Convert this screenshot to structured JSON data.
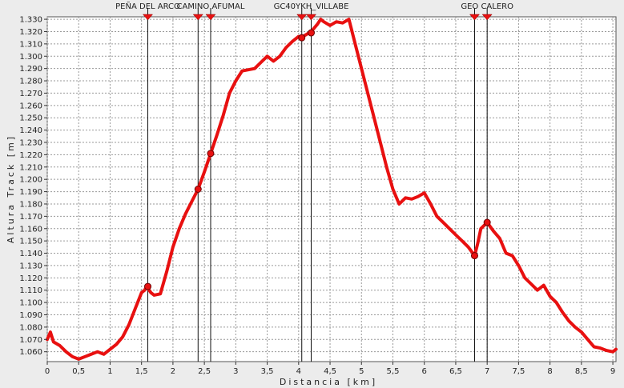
{
  "chart_data": {
    "type": "line",
    "title": "",
    "xlabel": "Distancia [km]",
    "ylabel": "Altura Track [m]",
    "xlim": [
      0,
      9.05
    ],
    "ylim": [
      1052,
      1332
    ],
    "grid": true,
    "x_ticks": [
      0,
      0.5,
      1,
      1.5,
      2,
      2.5,
      3,
      3.5,
      4,
      4.5,
      5,
      5.5,
      6,
      6.5,
      7,
      7.5,
      8,
      8.5,
      9
    ],
    "x_tick_labels": [
      "0",
      "0,5",
      "1",
      "1,5",
      "2",
      "2,5",
      "3",
      "3,5",
      "4",
      "4,5",
      "5",
      "5,5",
      "6",
      "6,5",
      "7",
      "7,5",
      "8",
      "8,5",
      "9"
    ],
    "y_ticks": [
      1060,
      1070,
      1080,
      1090,
      1100,
      1110,
      1120,
      1130,
      1140,
      1150,
      1160,
      1170,
      1180,
      1190,
      1200,
      1210,
      1220,
      1230,
      1240,
      1250,
      1260,
      1270,
      1280,
      1290,
      1300,
      1310,
      1320,
      1330
    ],
    "y_tick_labels": [
      "1.060",
      "1.070",
      "1.080",
      "1.090",
      "1.100",
      "1.110",
      "1.120",
      "1.130",
      "1.140",
      "1.150",
      "1.160",
      "1.170",
      "1.180",
      "1.190",
      "1.200",
      "1.210",
      "1.220",
      "1.230",
      "1.240",
      "1.250",
      "1.260",
      "1.270",
      "1.280",
      "1.290",
      "1.300",
      "1.310",
      "1.320",
      "1.330"
    ],
    "series": [
      {
        "name": "",
        "color": "#e81010",
        "x": [
          0,
          0.05,
          0.1,
          0.2,
          0.3,
          0.4,
          0.5,
          0.6,
          0.7,
          0.8,
          0.9,
          1.0,
          1.1,
          1.2,
          1.3,
          1.4,
          1.5,
          1.55,
          1.58,
          1.65,
          1.7,
          1.8,
          1.9,
          2.0,
          2.1,
          2.2,
          2.3,
          2.4,
          2.5,
          2.6,
          2.7,
          2.8,
          2.9,
          3.0,
          3.1,
          3.2,
          3.3,
          3.4,
          3.5,
          3.6,
          3.7,
          3.8,
          3.9,
          4.0,
          4.05,
          4.1,
          4.2,
          4.3,
          4.35,
          4.4,
          4.5,
          4.6,
          4.7,
          4.8,
          4.9,
          5.0,
          5.1,
          5.2,
          5.3,
          5.4,
          5.5,
          5.6,
          5.7,
          5.8,
          5.9,
          6.0,
          6.1,
          6.2,
          6.3,
          6.4,
          6.5,
          6.6,
          6.7,
          6.8,
          6.85,
          6.9,
          7.0,
          7.1,
          7.2,
          7.3,
          7.4,
          7.5,
          7.6,
          7.7,
          7.8,
          7.9,
          8.0,
          8.1,
          8.2,
          8.3,
          8.4,
          8.5,
          8.6,
          8.7,
          8.8,
          8.9,
          9.0,
          9.05
        ],
        "y": [
          1070,
          1076,
          1068,
          1065,
          1060,
          1056,
          1054,
          1056,
          1058,
          1060,
          1058,
          1062,
          1066,
          1072,
          1082,
          1095,
          1108,
          1110,
          1113,
          1108,
          1106,
          1107,
          1125,
          1145,
          1160,
          1172,
          1182,
          1192,
          1206,
          1221,
          1236,
          1252,
          1270,
          1280,
          1288,
          1289,
          1290,
          1295,
          1300,
          1296,
          1300,
          1307,
          1312,
          1316,
          1315,
          1317,
          1320,
          1326,
          1330,
          1328,
          1325,
          1328,
          1327,
          1330,
          1310,
          1290,
          1270,
          1250,
          1230,
          1210,
          1192,
          1180,
          1185,
          1184,
          1186,
          1189,
          1180,
          1170,
          1165,
          1160,
          1155,
          1150,
          1145,
          1138,
          1148,
          1160,
          1165,
          1158,
          1152,
          1140,
          1138,
          1130,
          1120,
          1115,
          1110,
          1114,
          1105,
          1100,
          1092,
          1085,
          1080,
          1076,
          1070,
          1064,
          1063,
          1061,
          1060,
          1062
        ]
      }
    ],
    "waypoints": [
      {
        "x": 1.6,
        "y": 1113,
        "label": "PEÑA DEL ARCO"
      },
      {
        "x": 2.4,
        "y": 1192,
        "label": ""
      },
      {
        "x": 2.6,
        "y": 1221,
        "label": "CAMINO AFUMAL"
      },
      {
        "x": 4.05,
        "y": 1315,
        "label": ""
      },
      {
        "x": 4.2,
        "y": 1319,
        "label": "GC40YKH_VILLABE"
      },
      {
        "x": 6.8,
        "y": 1138,
        "label": ""
      },
      {
        "x": 7.0,
        "y": 1165,
        "label": "GEO CALERO"
      }
    ]
  },
  "colors": {
    "background": "#ececec",
    "plot_background": "#ffffff",
    "line": "#e81010",
    "marker": "#e81010"
  }
}
